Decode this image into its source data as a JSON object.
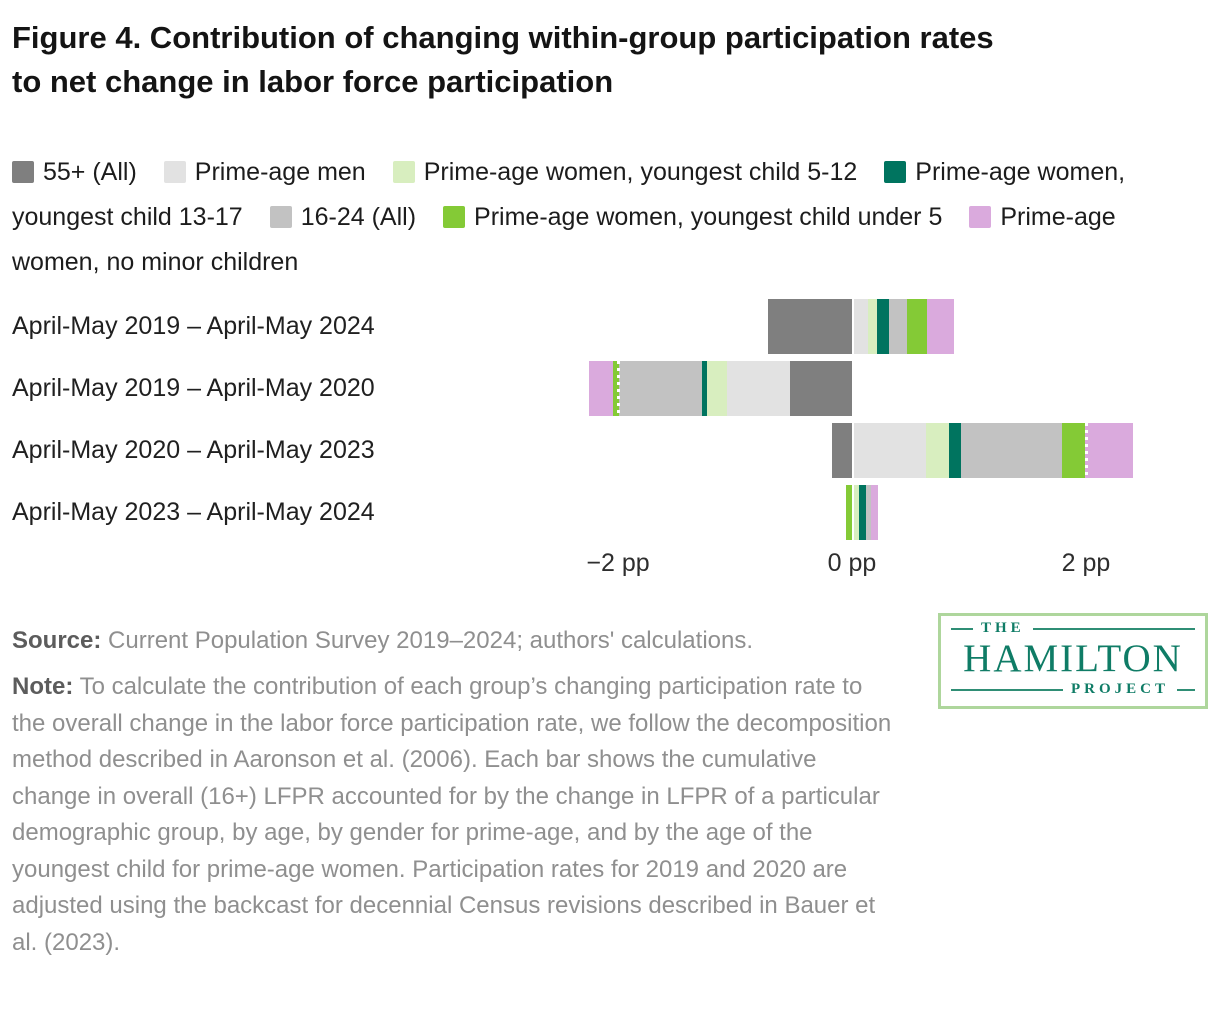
{
  "title": {
    "line1": "Figure 4. Contribution of changing within-group participation rates",
    "line2": "to net change in labor force participation"
  },
  "colors": {
    "g55": "#7f7f7f",
    "men": "#e2e2e2",
    "w512": "#d8eebf",
    "w1317": "#00745f",
    "y1624": "#c2c2c2",
    "wu5": "#84ca36",
    "wnm": "#daaadd",
    "gridline_dots": "#ffffff",
    "logo_teal": "#0f7c66",
    "logo_border_green": "#aed69c"
  },
  "legend": {
    "items": [
      {
        "key": "g55",
        "label": "55+ (All)"
      },
      {
        "key": "men",
        "label": "Prime-age men"
      },
      {
        "key": "w512",
        "label": "Prime-age women, youngest child 5-12"
      },
      {
        "key": "w1317",
        "label": "Prime-age women, youngest child 13-17"
      },
      {
        "key": "y1624",
        "label": "16-24 (All)"
      },
      {
        "key": "wu5",
        "label": "Prime-age women, youngest child under 5"
      },
      {
        "key": "wnm",
        "label": "Prime-age women, no minor children"
      }
    ]
  },
  "chart_data": {
    "type": "bar",
    "orientation": "horizontal-stacked",
    "unit": "percentage points",
    "series_order": [
      "g55",
      "men",
      "w512",
      "w1317",
      "y1624",
      "wu5",
      "wnm"
    ],
    "series_labels": {
      "g55": "55+ (All)",
      "men": "Prime-age men",
      "w512": "Prime-age women, youngest child 5-12",
      "w1317": "Prime-age women, youngest child 13-17",
      "y1624": "16-24 (All)",
      "wu5": "Prime-age women, youngest child under 5",
      "wnm": "Prime-age women, no minor children"
    },
    "rows": [
      {
        "label": "April-May 2019 – April-May 2024",
        "values": {
          "g55": -0.72,
          "men": 0.12,
          "w512": 0.08,
          "w1317": 0.1,
          "y1624": 0.16,
          "wu5": 0.17,
          "wnm": 0.23
        }
      },
      {
        "label": "April-May 2019 – April-May 2020",
        "values": {
          "g55": -0.53,
          "men": -0.54,
          "w512": -0.17,
          "w1317": -0.04,
          "y1624": -0.71,
          "wu5": -0.05,
          "wnm": -0.21
        }
      },
      {
        "label": "April-May 2020 – April-May 2023",
        "values": {
          "g55": -0.17,
          "men": 0.62,
          "w512": 0.2,
          "w1317": 0.1,
          "y1624": 0.86,
          "wu5": 0.2,
          "wnm": 0.41
        }
      },
      {
        "label": "April-May 2023 – April-May 2024",
        "values": {
          "g55": 0,
          "men": 0,
          "w512": 0.05,
          "w1317": 0.06,
          "y1624": 0.04,
          "wu5": -0.05,
          "wnm": 0.06
        }
      }
    ],
    "xticks": [
      {
        "label": "−2 pp",
        "pp": -2
      },
      {
        "label": "0 pp",
        "pp": 0
      },
      {
        "label": "2 pp",
        "pp": 2
      }
    ],
    "xlim": [
      -2.6,
      3.05
    ],
    "gridlines_pp": [
      -2,
      2
    ],
    "grid": "dotted white vertical lines at ±2 pp visible over bars"
  },
  "source": {
    "label": "Source:",
    "text": "Current Population Survey 2019–2024; authors' calculations."
  },
  "note": {
    "label": "Note:",
    "text": "To calculate the contribution of each group’s changing participation rate to the overall change in the labor force participation rate, we follow the decomposition method described in Aaronson et al. (2006). Each bar shows the cumulative change in overall (16+) LFPR accounted for by the change in LFPR of a particular demographic group, by age, by gender for prime-age, and by the age of the youngest child for prime-age women. Participation rates for 2019 and 2020 are adjusted using the backcast for decennial Census revisions described in Bauer et al. (2023)."
  },
  "logo": {
    "line1": "THE",
    "line2": "HAMILTON",
    "line3": "PROJECT"
  }
}
